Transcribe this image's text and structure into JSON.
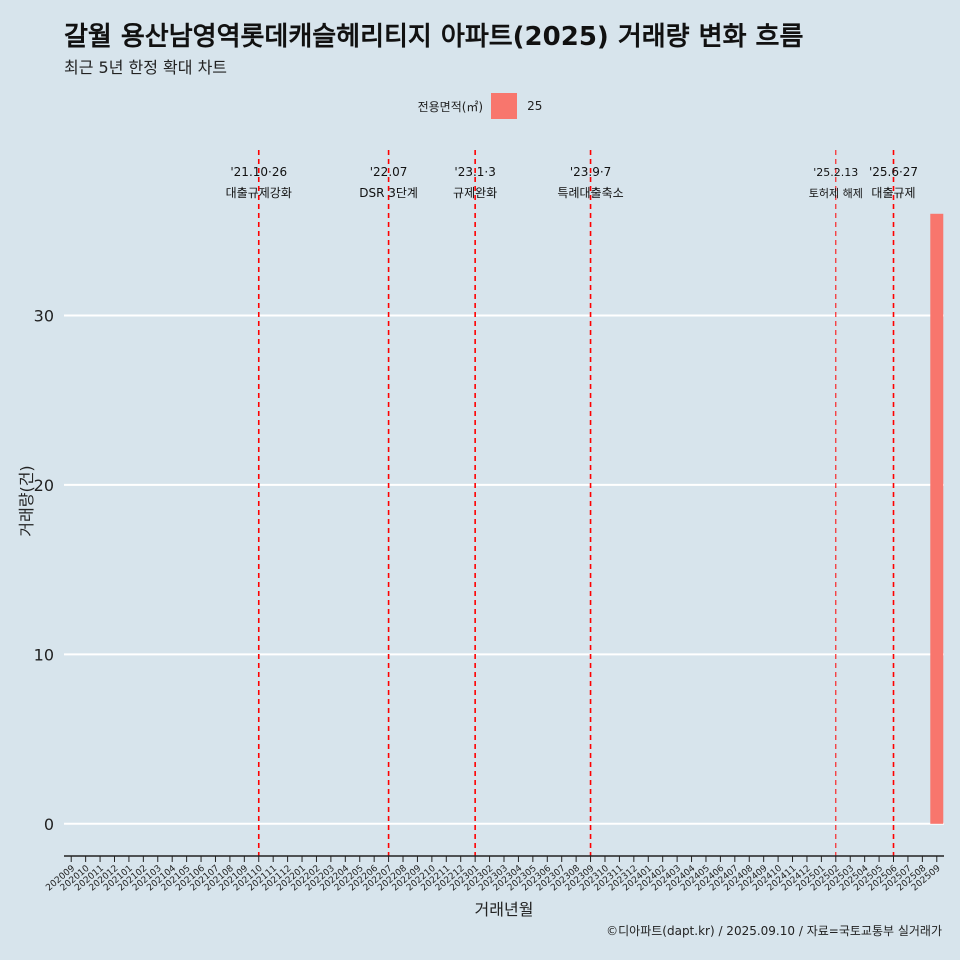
{
  "header": {
    "title": "갈월 용산남영역롯데캐슬헤리티지 아파트(2025) 거래량 변화 흐름",
    "subtitle": "최근 5년 한정 확대 차트"
  },
  "caption": "©디아파트(dapt.kr) / 2025.09.10 / 자료=국토교통부 실거래가",
  "colors": {
    "bar": "#f8766d",
    "event_line": "#ff0000",
    "background": "#d7e4ec",
    "grid": "#ffffff"
  },
  "chart_data": {
    "type": "bar",
    "xlabel": "거래년월",
    "ylabel": "거래량(건)",
    "ylim": [
      -1.9,
      40
    ],
    "yticks": [
      0,
      10,
      20,
      30
    ],
    "legend": {
      "title": "전용면적(㎡)",
      "entries": [
        "25"
      ],
      "position": "top"
    },
    "categories": [
      "202009",
      "202010",
      "202011",
      "202012",
      "202101",
      "202102",
      "202103",
      "202104",
      "202105",
      "202106",
      "202107",
      "202108",
      "202109",
      "202110",
      "202111",
      "202112",
      "202201",
      "202202",
      "202203",
      "202204",
      "202205",
      "202206",
      "202207",
      "202208",
      "202209",
      "202210",
      "202211",
      "202212",
      "202301",
      "202302",
      "202303",
      "202304",
      "202305",
      "202306",
      "202307",
      "202308",
      "202309",
      "202310",
      "202311",
      "202312",
      "202401",
      "202402",
      "202403",
      "202404",
      "202405",
      "202406",
      "202407",
      "202408",
      "202409",
      "202410",
      "202411",
      "202412",
      "202501",
      "202502",
      "202503",
      "202504",
      "202505",
      "202506",
      "202507",
      "202508",
      "202509"
    ],
    "series": [
      {
        "name": "25",
        "values": [
          0,
          0,
          0,
          0,
          0,
          0,
          0,
          0,
          0,
          0,
          0,
          0,
          0,
          0,
          0,
          0,
          0,
          0,
          0,
          0,
          0,
          0,
          0,
          0,
          0,
          0,
          0,
          0,
          0,
          0,
          0,
          0,
          0,
          0,
          0,
          0,
          0,
          0,
          0,
          0,
          0,
          0,
          0,
          0,
          0,
          0,
          0,
          0,
          0,
          0,
          0,
          0,
          0,
          0,
          0,
          0,
          0,
          0,
          0,
          0,
          36
        ]
      }
    ],
    "events": [
      {
        "category": "202110",
        "line1": "'21.10·26",
        "line2": "대출규제강화",
        "style": "major"
      },
      {
        "category": "202207",
        "line1": "'22.07",
        "line2": "DSR 3단계",
        "style": "major"
      },
      {
        "category": "202301",
        "line1": "'23.1·3",
        "line2": "규제완화",
        "style": "major"
      },
      {
        "category": "202309",
        "line1": "'23.9·7",
        "line2": "특례대출축소",
        "style": "major"
      },
      {
        "category": "202502",
        "line1": "'25.2.13",
        "line2": "토허제 해제",
        "style": "minor"
      },
      {
        "category": "202506",
        "line1": "'25.6·27",
        "line2": "대출규제",
        "style": "major"
      }
    ]
  }
}
